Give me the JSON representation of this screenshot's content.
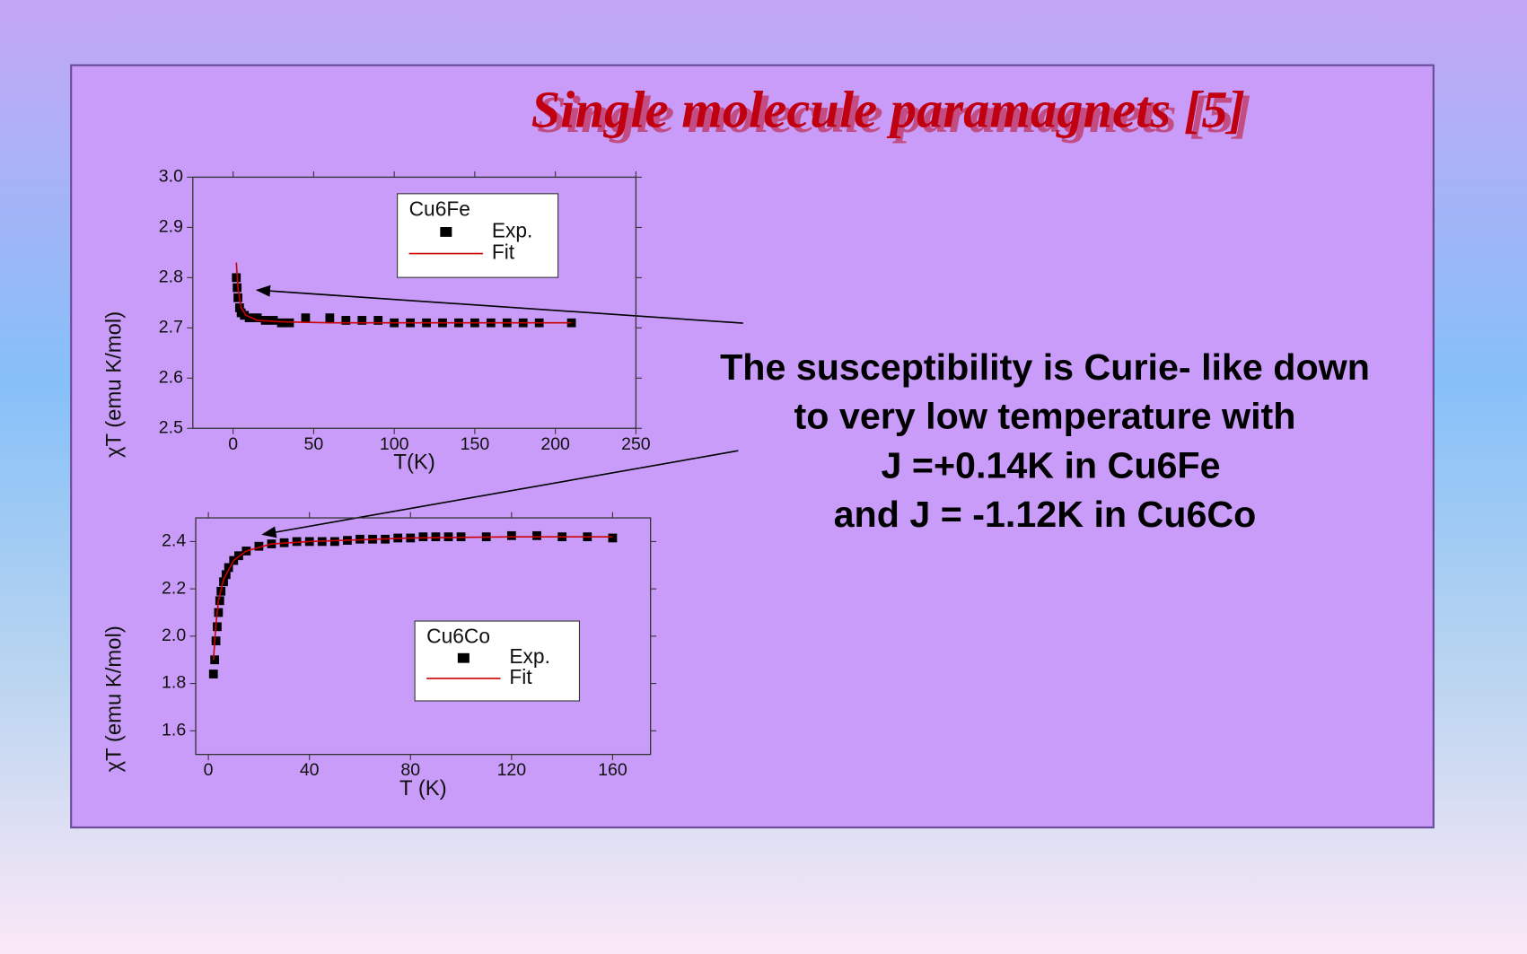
{
  "title": "Single molecule paramagnets [5]",
  "text": [
    "The susceptibility is Curie- like down",
    "to very low temperature with",
    "J =+0.14K in Cu6Fe",
    "and J = -1.12K in Cu6Co"
  ],
  "chart_data": [
    {
      "type": "scatter",
      "legend_title": "Cu6Fe",
      "xlabel": "T(K)",
      "ylabel": "χT (emu K/mol)",
      "xlim": [
        -25,
        250
      ],
      "xticks": [
        0,
        50,
        100,
        150,
        200,
        250
      ],
      "ylim": [
        2.5,
        3.0
      ],
      "yticks": [
        2.5,
        2.6,
        2.7,
        2.8,
        2.9,
        {
          "value": 3.0,
          "label": "3.0"
        }
      ],
      "series": [
        {
          "name": "Exp.",
          "color": "#000000",
          "mode": "markers",
          "x": [
            2,
            2.5,
            3,
            4,
            5,
            7,
            10,
            15,
            20,
            25,
            30,
            35,
            45,
            60,
            70,
            80,
            90,
            100,
            110,
            120,
            130,
            140,
            150,
            160,
            170,
            180,
            190,
            210
          ],
          "values": [
            2.8,
            2.78,
            2.76,
            2.74,
            2.73,
            2.725,
            2.72,
            2.72,
            2.715,
            2.715,
            2.71,
            2.71,
            2.72,
            2.72,
            2.715,
            2.715,
            2.715,
            2.71,
            2.71,
            2.71,
            2.71,
            2.71,
            2.71,
            2.71,
            2.71,
            2.71,
            2.71,
            2.71
          ]
        },
        {
          "name": "Fit",
          "color": "#cc0000",
          "mode": "line",
          "x": [
            2,
            3,
            5,
            8,
            15,
            30,
            60,
            100,
            150,
            210
          ],
          "values": [
            2.83,
            2.78,
            2.74,
            2.725,
            2.715,
            2.712,
            2.71,
            2.71,
            2.71,
            2.71
          ]
        }
      ]
    },
    {
      "type": "scatter",
      "legend_title": "Cu6Co",
      "xlabel": "T (K)",
      "ylabel": "χT (emu K/mol)",
      "xlim": [
        -5,
        175
      ],
      "xticks": [
        0,
        40,
        80,
        120,
        160
      ],
      "ylim": [
        1.5,
        2.5
      ],
      "yticks": [
        1.6,
        1.8,
        {
          "value": 2.0,
          "label": "2.0"
        },
        2.2,
        2.4
      ],
      "series": [
        {
          "name": "Exp.",
          "color": "#000000",
          "mode": "markers",
          "x": [
            2,
            2.5,
            3,
            3.5,
            4,
            4.5,
            5,
            6,
            7,
            8,
            10,
            12,
            15,
            20,
            25,
            30,
            35,
            40,
            45,
            50,
            55,
            60,
            65,
            70,
            75,
            80,
            85,
            90,
            95,
            100,
            110,
            120,
            130,
            140,
            150,
            160
          ],
          "values": [
            1.84,
            1.9,
            1.98,
            2.04,
            2.1,
            2.15,
            2.19,
            2.23,
            2.26,
            2.29,
            2.32,
            2.34,
            2.36,
            2.38,
            2.39,
            2.395,
            2.4,
            2.4,
            2.4,
            2.4,
            2.405,
            2.41,
            2.41,
            2.41,
            2.415,
            2.415,
            2.42,
            2.42,
            2.42,
            2.42,
            2.42,
            2.425,
            2.425,
            2.42,
            2.42,
            2.415
          ]
        },
        {
          "name": "Fit",
          "color": "#cc0000",
          "mode": "line",
          "x": [
            2,
            3,
            4,
            6,
            10,
            15,
            25,
            40,
            80,
            120,
            160
          ],
          "values": [
            1.9,
            2.05,
            2.15,
            2.24,
            2.32,
            2.36,
            2.39,
            2.4,
            2.415,
            2.42,
            2.42
          ]
        }
      ]
    }
  ]
}
